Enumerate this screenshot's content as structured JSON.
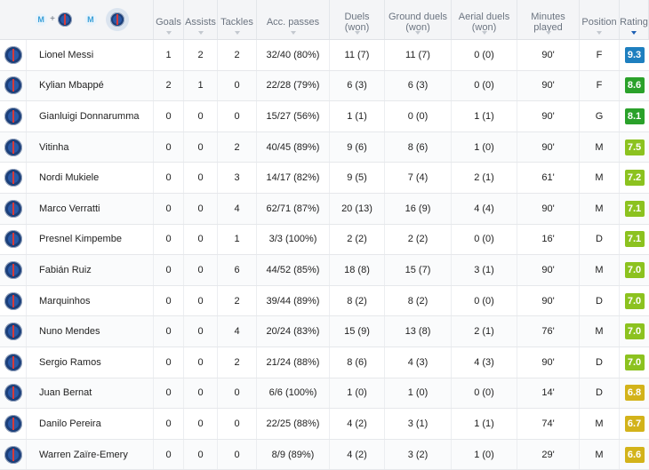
{
  "header": {
    "team_home_icon": "om-crest-icon",
    "team_away_icon": "psg-crest-icon",
    "columns": {
      "goals": "Goals",
      "assists": "Assists",
      "tackles": "Tackles",
      "acc_passes": "Acc. passes",
      "duels": "Duels\n(won)",
      "ground_duels": "Ground duels\n(won)",
      "aerial_duels": "Aerial duels\n(won)",
      "minutes": "Minutes\nplayed",
      "position": "Position",
      "rating": "Rating"
    },
    "sorted_by": "rating"
  },
  "rating_colors": {
    "top": "#1e7fbf",
    "high": "#2aa12a",
    "good": "#7fbf1f",
    "mid": "#d3b31a"
  },
  "players": [
    {
      "name": "Lionel Messi",
      "goals": "1",
      "assists": "2",
      "tackles": "2",
      "acc_passes": "32/40 (80%)",
      "duels": "11 (7)",
      "ground": "11 (7)",
      "aerial": "0 (0)",
      "minutes": "90'",
      "position": "F",
      "rating": "9.3",
      "color": "#1e7fbf"
    },
    {
      "name": "Kylian Mbappé",
      "goals": "2",
      "assists": "1",
      "tackles": "0",
      "acc_passes": "22/28 (79%)",
      "duels": "6 (3)",
      "ground": "6 (3)",
      "aerial": "0 (0)",
      "minutes": "90'",
      "position": "F",
      "rating": "8.6",
      "color": "#2aa12a"
    },
    {
      "name": "Gianluigi Donnarumma",
      "goals": "0",
      "assists": "0",
      "tackles": "0",
      "acc_passes": "15/27 (56%)",
      "duels": "1 (1)",
      "ground": "0 (0)",
      "aerial": "1 (1)",
      "minutes": "90'",
      "position": "G",
      "rating": "8.1",
      "color": "#2aa12a"
    },
    {
      "name": "Vitinha",
      "goals": "0",
      "assists": "0",
      "tackles": "2",
      "acc_passes": "40/45 (89%)",
      "duels": "9 (6)",
      "ground": "8 (6)",
      "aerial": "1 (0)",
      "minutes": "90'",
      "position": "M",
      "rating": "7.5",
      "color": "#8cc21f"
    },
    {
      "name": "Nordi Mukiele",
      "goals": "0",
      "assists": "0",
      "tackles": "3",
      "acc_passes": "14/17 (82%)",
      "duels": "9 (5)",
      "ground": "7 (4)",
      "aerial": "2 (1)",
      "minutes": "61'",
      "position": "M",
      "rating": "7.2",
      "color": "#8cc21f"
    },
    {
      "name": "Marco Verratti",
      "goals": "0",
      "assists": "0",
      "tackles": "4",
      "acc_passes": "62/71 (87%)",
      "duels": "20 (13)",
      "ground": "16 (9)",
      "aerial": "4 (4)",
      "minutes": "90'",
      "position": "M",
      "rating": "7.1",
      "color": "#8cc21f"
    },
    {
      "name": "Presnel Kimpembe",
      "goals": "0",
      "assists": "0",
      "tackles": "1",
      "acc_passes": "3/3 (100%)",
      "duels": "2 (2)",
      "ground": "2 (2)",
      "aerial": "0 (0)",
      "minutes": "16'",
      "position": "D",
      "rating": "7.1",
      "color": "#8cc21f"
    },
    {
      "name": "Fabián Ruiz",
      "goals": "0",
      "assists": "0",
      "tackles": "6",
      "acc_passes": "44/52 (85%)",
      "duels": "18 (8)",
      "ground": "15 (7)",
      "aerial": "3 (1)",
      "minutes": "90'",
      "position": "M",
      "rating": "7.0",
      "color": "#8cc21f"
    },
    {
      "name": "Marquinhos",
      "goals": "0",
      "assists": "0",
      "tackles": "2",
      "acc_passes": "39/44 (89%)",
      "duels": "8 (2)",
      "ground": "8 (2)",
      "aerial": "0 (0)",
      "minutes": "90'",
      "position": "D",
      "rating": "7.0",
      "color": "#8cc21f"
    },
    {
      "name": "Nuno Mendes",
      "goals": "0",
      "assists": "0",
      "tackles": "4",
      "acc_passes": "20/24 (83%)",
      "duels": "15 (9)",
      "ground": "13 (8)",
      "aerial": "2 (1)",
      "minutes": "76'",
      "position": "M",
      "rating": "7.0",
      "color": "#8cc21f"
    },
    {
      "name": "Sergio Ramos",
      "goals": "0",
      "assists": "0",
      "tackles": "2",
      "acc_passes": "21/24 (88%)",
      "duels": "8 (6)",
      "ground": "4 (3)",
      "aerial": "4 (3)",
      "minutes": "90'",
      "position": "D",
      "rating": "7.0",
      "color": "#8cc21f"
    },
    {
      "name": "Juan Bernat",
      "goals": "0",
      "assists": "0",
      "tackles": "0",
      "acc_passes": "6/6 (100%)",
      "duels": "1 (0)",
      "ground": "1 (0)",
      "aerial": "0 (0)",
      "minutes": "14'",
      "position": "D",
      "rating": "6.8",
      "color": "#d3b31a"
    },
    {
      "name": "Danilo Pereira",
      "goals": "0",
      "assists": "0",
      "tackles": "0",
      "acc_passes": "22/25 (88%)",
      "duels": "4 (2)",
      "ground": "3 (1)",
      "aerial": "1 (1)",
      "minutes": "74'",
      "position": "M",
      "rating": "6.7",
      "color": "#d3b31a"
    },
    {
      "name": "Warren Zaïre-Emery",
      "goals": "0",
      "assists": "0",
      "tackles": "0",
      "acc_passes": "8/9 (89%)",
      "duels": "4 (2)",
      "ground": "3 (2)",
      "aerial": "1 (0)",
      "minutes": "29'",
      "position": "M",
      "rating": "6.6",
      "color": "#d3b31a"
    }
  ]
}
